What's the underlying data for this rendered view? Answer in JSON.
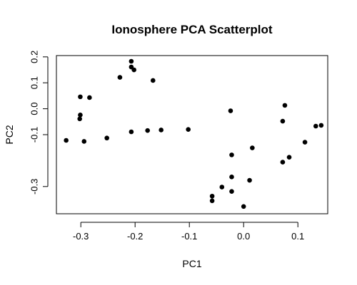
{
  "chart_data": {
    "type": "scatter",
    "title": "Ionosphere PCA Scatterplot",
    "xlabel": "PC1",
    "ylabel": "PC2",
    "xlim": [
      -0.345,
      0.155
    ],
    "ylim": [
      -0.405,
      0.205
    ],
    "xticks": [
      -0.3,
      -0.2,
      -0.1,
      0.0,
      0.1
    ],
    "xtick_labels": [
      "-0.3",
      "-0.2",
      "-0.1",
      "0.0",
      "0.1"
    ],
    "yticks": [
      -0.3,
      -0.1,
      0.0,
      0.1,
      0.2
    ],
    "ytick_labels": [
      "-0.3",
      "-0.1",
      "0.0",
      "0.1",
      "0.2"
    ],
    "grid": false,
    "point_color": "#000000",
    "points": [
      {
        "x": -0.327,
        "y": -0.122
      },
      {
        "x": -0.301,
        "y": 0.046
      },
      {
        "x": -0.301,
        "y": -0.024
      },
      {
        "x": -0.302,
        "y": -0.039
      },
      {
        "x": -0.294,
        "y": -0.126
      },
      {
        "x": -0.284,
        "y": 0.043
      },
      {
        "x": -0.252,
        "y": -0.113
      },
      {
        "x": -0.228,
        "y": 0.121
      },
      {
        "x": -0.207,
        "y": 0.183
      },
      {
        "x": -0.207,
        "y": 0.161
      },
      {
        "x": -0.202,
        "y": 0.15
      },
      {
        "x": -0.207,
        "y": -0.089
      },
      {
        "x": -0.167,
        "y": 0.109
      },
      {
        "x": -0.177,
        "y": -0.084
      },
      {
        "x": -0.152,
        "y": -0.082
      },
      {
        "x": -0.102,
        "y": -0.08
      },
      {
        "x": -0.058,
        "y": -0.337
      },
      {
        "x": -0.058,
        "y": -0.355
      },
      {
        "x": -0.04,
        "y": -0.302
      },
      {
        "x": -0.024,
        "y": -0.008
      },
      {
        "x": -0.022,
        "y": -0.178
      },
      {
        "x": -0.022,
        "y": -0.263
      },
      {
        "x": -0.022,
        "y": -0.319
      },
      {
        "x": 0.0,
        "y": -0.377
      },
      {
        "x": 0.011,
        "y": -0.276
      },
      {
        "x": 0.016,
        "y": -0.151
      },
      {
        "x": 0.072,
        "y": -0.048
      },
      {
        "x": 0.076,
        "y": 0.013
      },
      {
        "x": 0.072,
        "y": -0.206
      },
      {
        "x": 0.084,
        "y": -0.187
      },
      {
        "x": 0.113,
        "y": -0.129
      },
      {
        "x": 0.133,
        "y": -0.067
      },
      {
        "x": 0.143,
        "y": -0.064
      }
    ]
  }
}
